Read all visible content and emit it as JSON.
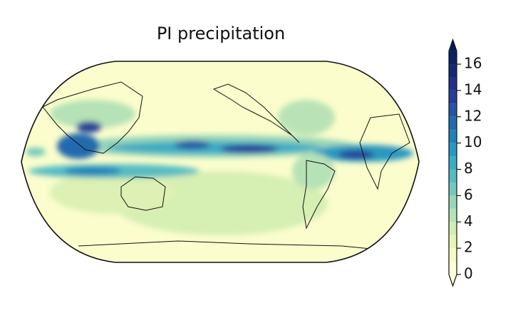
{
  "chart_data": {
    "type": "contour-map",
    "title": "PI precipitation",
    "colorbar": {
      "lim": [
        0,
        17
      ],
      "ticks": [
        0,
        2,
        4,
        6,
        8,
        10,
        12,
        14,
        16
      ],
      "levels": [
        0,
        1,
        2,
        3,
        4,
        5,
        6,
        7,
        8,
        9,
        10,
        11,
        12,
        13,
        14,
        15,
        16,
        17
      ],
      "colors": [
        "#ffffd9",
        "#f4fbc4",
        "#e6f5b5",
        "#d0edb3",
        "#b5e2b6",
        "#97d6b9",
        "#75c9bc",
        "#56bcc2",
        "#3eabc3",
        "#2c98c0",
        "#2081b9",
        "#216bae",
        "#2356a3",
        "#253f98",
        "#23308a",
        "#162873",
        "#0c2262"
      ],
      "under_color": "#ffffd9",
      "over_color": "#081d58"
    }
  }
}
